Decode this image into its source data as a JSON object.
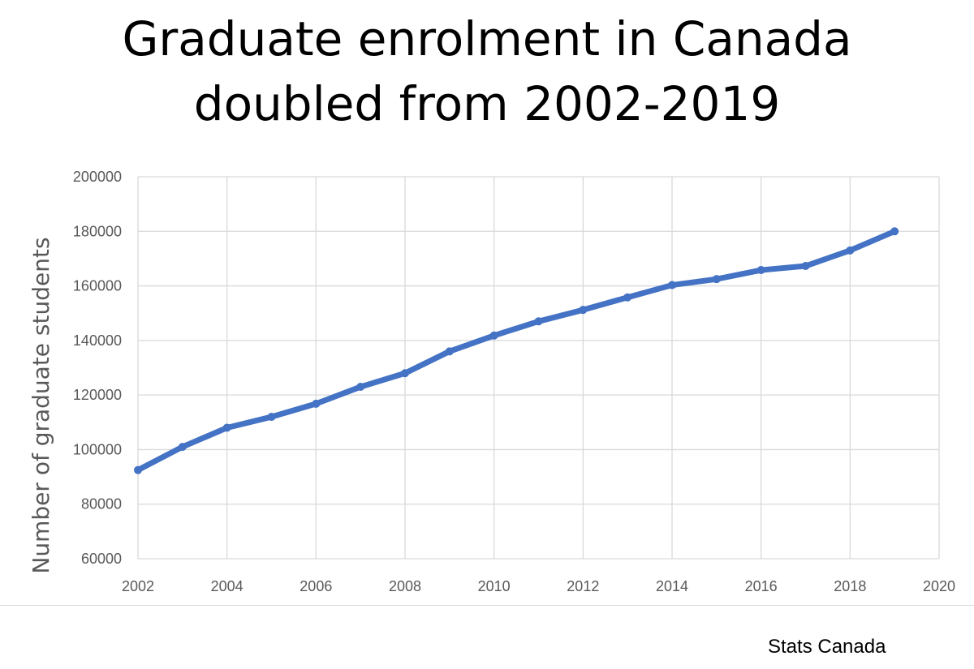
{
  "chart_data": {
    "type": "line",
    "title_lines": [
      "Graduate enrolment in Canada",
      "doubled from 2002-2019"
    ],
    "xlabel": "",
    "ylabel": "Number of graduate students",
    "xlim": [
      2002,
      2020
    ],
    "ylim": [
      60000,
      200000
    ],
    "x_ticks": [
      2002,
      2004,
      2006,
      2008,
      2010,
      2012,
      2014,
      2016,
      2018,
      2020
    ],
    "y_ticks": [
      60000,
      80000,
      100000,
      120000,
      140000,
      160000,
      180000,
      200000
    ],
    "grid": true,
    "legend": "none",
    "series": [
      {
        "name": "Graduate enrolment",
        "color": "#4472c4",
        "x": [
          2002,
          2003,
          2004,
          2005,
          2006,
          2007,
          2008,
          2009,
          2010,
          2011,
          2012,
          2013,
          2014,
          2015,
          2016,
          2017,
          2018,
          2019
        ],
        "values": [
          92500,
          101000,
          108000,
          112000,
          116800,
          123000,
          128000,
          136000,
          141800,
          147000,
          151200,
          155800,
          160300,
          162500,
          165800,
          167300,
          173000,
          180000
        ]
      }
    ]
  },
  "source": "Stats Canada",
  "colors": {
    "line": "#4472c4",
    "grid": "#d9d9d9",
    "tick_text": "#595959"
  }
}
